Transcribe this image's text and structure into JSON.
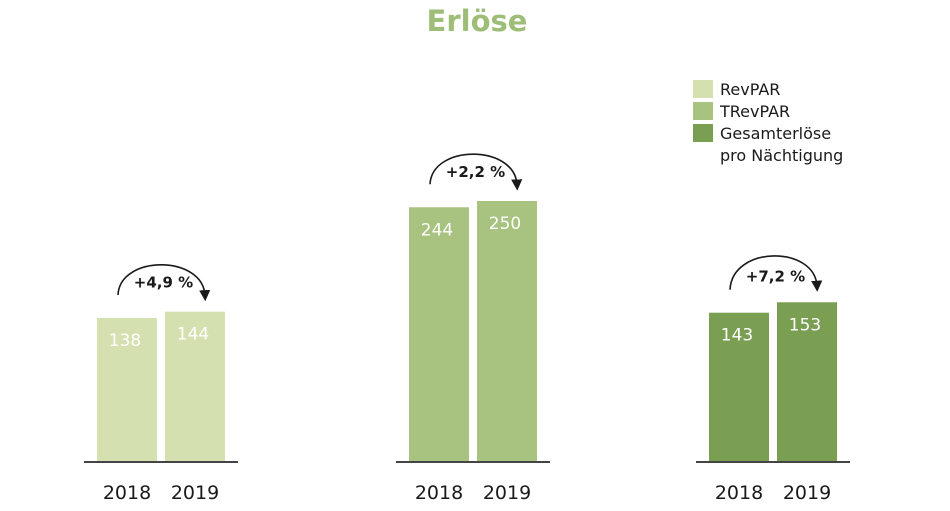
{
  "chart_data": {
    "type": "bar",
    "title": "Erlöse",
    "xlabel": "",
    "ylabel": "",
    "categories": [
      "2018",
      "2019"
    ],
    "ylim": [
      0,
      250
    ],
    "grid": false,
    "legend_position": "top-right",
    "colors": {
      "title": "#9ebe78",
      "axis": "#444444",
      "arrow": "#1a1a1a"
    },
    "groups": [
      {
        "name": "RevPAR",
        "color": "#d4e0b0",
        "values": [
          138,
          144
        ],
        "labels": [
          "138",
          "144"
        ],
        "change": "+4,9 %"
      },
      {
        "name": "TRevPAR",
        "color": "#a8c280",
        "values": [
          244,
          250
        ],
        "labels": [
          "244",
          "250"
        ],
        "change": "+2,2 %"
      },
      {
        "name": "Gesamterlöse pro Nächtigung",
        "color": "#7a9e52",
        "values": [
          143,
          153
        ],
        "labels": [
          "143",
          "153"
        ],
        "change": "+7,2 %"
      }
    ],
    "legend": [
      {
        "lines": [
          "RevPAR"
        ],
        "color": "#d4e0b0"
      },
      {
        "lines": [
          "TRevPAR"
        ],
        "color": "#a8c280"
      },
      {
        "lines": [
          "Gesamterlöse",
          "pro Nächtigung"
        ],
        "color": "#7a9e52"
      }
    ]
  }
}
